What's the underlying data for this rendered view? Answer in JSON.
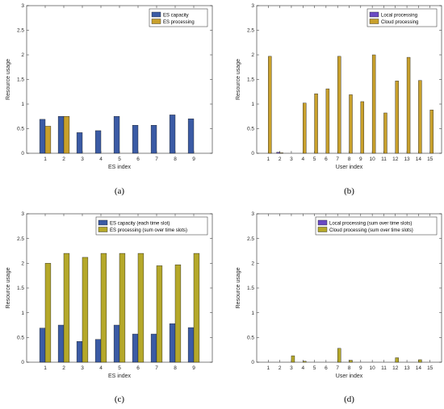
{
  "chart_data": [
    {
      "type": "bar",
      "caption": "(a)",
      "xlabel": "ES index",
      "ylabel": "Resource usage",
      "ylim": [
        0,
        3
      ],
      "yticks": [
        0,
        0.5,
        1,
        1.5,
        2,
        2.5,
        3
      ],
      "categories": [
        "1",
        "2",
        "3",
        "4",
        "5",
        "6",
        "7",
        "8",
        "9"
      ],
      "series": [
        {
          "name": "ES capacity",
          "color": "#3b5ba5",
          "values": [
            0.69,
            0.75,
            0.42,
            0.46,
            0.75,
            0.57,
            0.57,
            0.78,
            0.7
          ]
        },
        {
          "name": "ES processing",
          "color": "#c8a02c",
          "values": [
            0.55,
            0.75,
            0,
            0,
            0,
            0,
            0,
            0,
            0
          ]
        }
      ],
      "legend_position": "top-right",
      "grid": false
    },
    {
      "type": "bar",
      "caption": "(b)",
      "xlabel": "User index",
      "ylabel": "Resource usage",
      "ylim": [
        0,
        3
      ],
      "yticks": [
        0,
        0.5,
        1,
        1.5,
        2,
        2.5,
        3
      ],
      "categories": [
        "1",
        "2",
        "3",
        "4",
        "5",
        "6",
        "7",
        "8",
        "9",
        "10",
        "11",
        "12",
        "13",
        "14",
        "15"
      ],
      "series": [
        {
          "name": "Local processing",
          "color": "#6a4bc4",
          "values": [
            0,
            0.02,
            0,
            0,
            0,
            0,
            0,
            0,
            0,
            0,
            0,
            0,
            0,
            0,
            0
          ]
        },
        {
          "name": "Cloud processing",
          "color": "#c8a02c",
          "values": [
            1.97,
            0.01,
            0,
            1.02,
            1.21,
            1.31,
            1.97,
            1.19,
            1.05,
            2.0,
            0.82,
            1.47,
            1.95,
            1.48,
            0.88
          ]
        }
      ],
      "legend_position": "top-right",
      "grid": false
    },
    {
      "type": "bar",
      "caption": "(c)",
      "xlabel": "ES index",
      "ylabel": "Resource usage",
      "ylim": [
        0,
        3
      ],
      "yticks": [
        0,
        0.5,
        1,
        1.5,
        2,
        2.5,
        3
      ],
      "categories": [
        "1",
        "2",
        "3",
        "4",
        "5",
        "6",
        "7",
        "8",
        "9"
      ],
      "series": [
        {
          "name": "ES capacity (each time slot)",
          "color": "#3b5ba5",
          "values": [
            0.69,
            0.75,
            0.42,
            0.46,
            0.75,
            0.57,
            0.57,
            0.78,
            0.7
          ]
        },
        {
          "name": "ES processing (sum over time slots)",
          "color": "#b5a82a",
          "values": [
            2.0,
            2.2,
            2.12,
            2.2,
            2.2,
            2.2,
            1.95,
            1.97,
            2.2
          ]
        }
      ],
      "legend_position": "top-right",
      "grid": false
    },
    {
      "type": "bar",
      "caption": "(d)",
      "xlabel": "User index",
      "ylabel": "Resource usage",
      "ylim": [
        0,
        3
      ],
      "yticks": [
        0,
        0.5,
        1,
        1.5,
        2,
        2.5,
        3
      ],
      "categories": [
        "1",
        "2",
        "3",
        "4",
        "5",
        "6",
        "7",
        "8",
        "9",
        "10",
        "11",
        "12",
        "13",
        "14",
        "15"
      ],
      "series": [
        {
          "name": "Local processing (sum over time slots)",
          "color": "#6a4bc4",
          "values": [
            0,
            0,
            0,
            0,
            0,
            0,
            0,
            0,
            0,
            0,
            0,
            0,
            0,
            0,
            0
          ]
        },
        {
          "name": "Cloud processing (sum over time slots)",
          "color": "#b5a82a",
          "values": [
            0,
            0,
            0.13,
            0.02,
            0,
            0,
            0.28,
            0.04,
            0,
            0,
            0,
            0.09,
            0,
            0.05,
            0
          ]
        }
      ],
      "legend_position": "top-right",
      "grid": false
    }
  ]
}
